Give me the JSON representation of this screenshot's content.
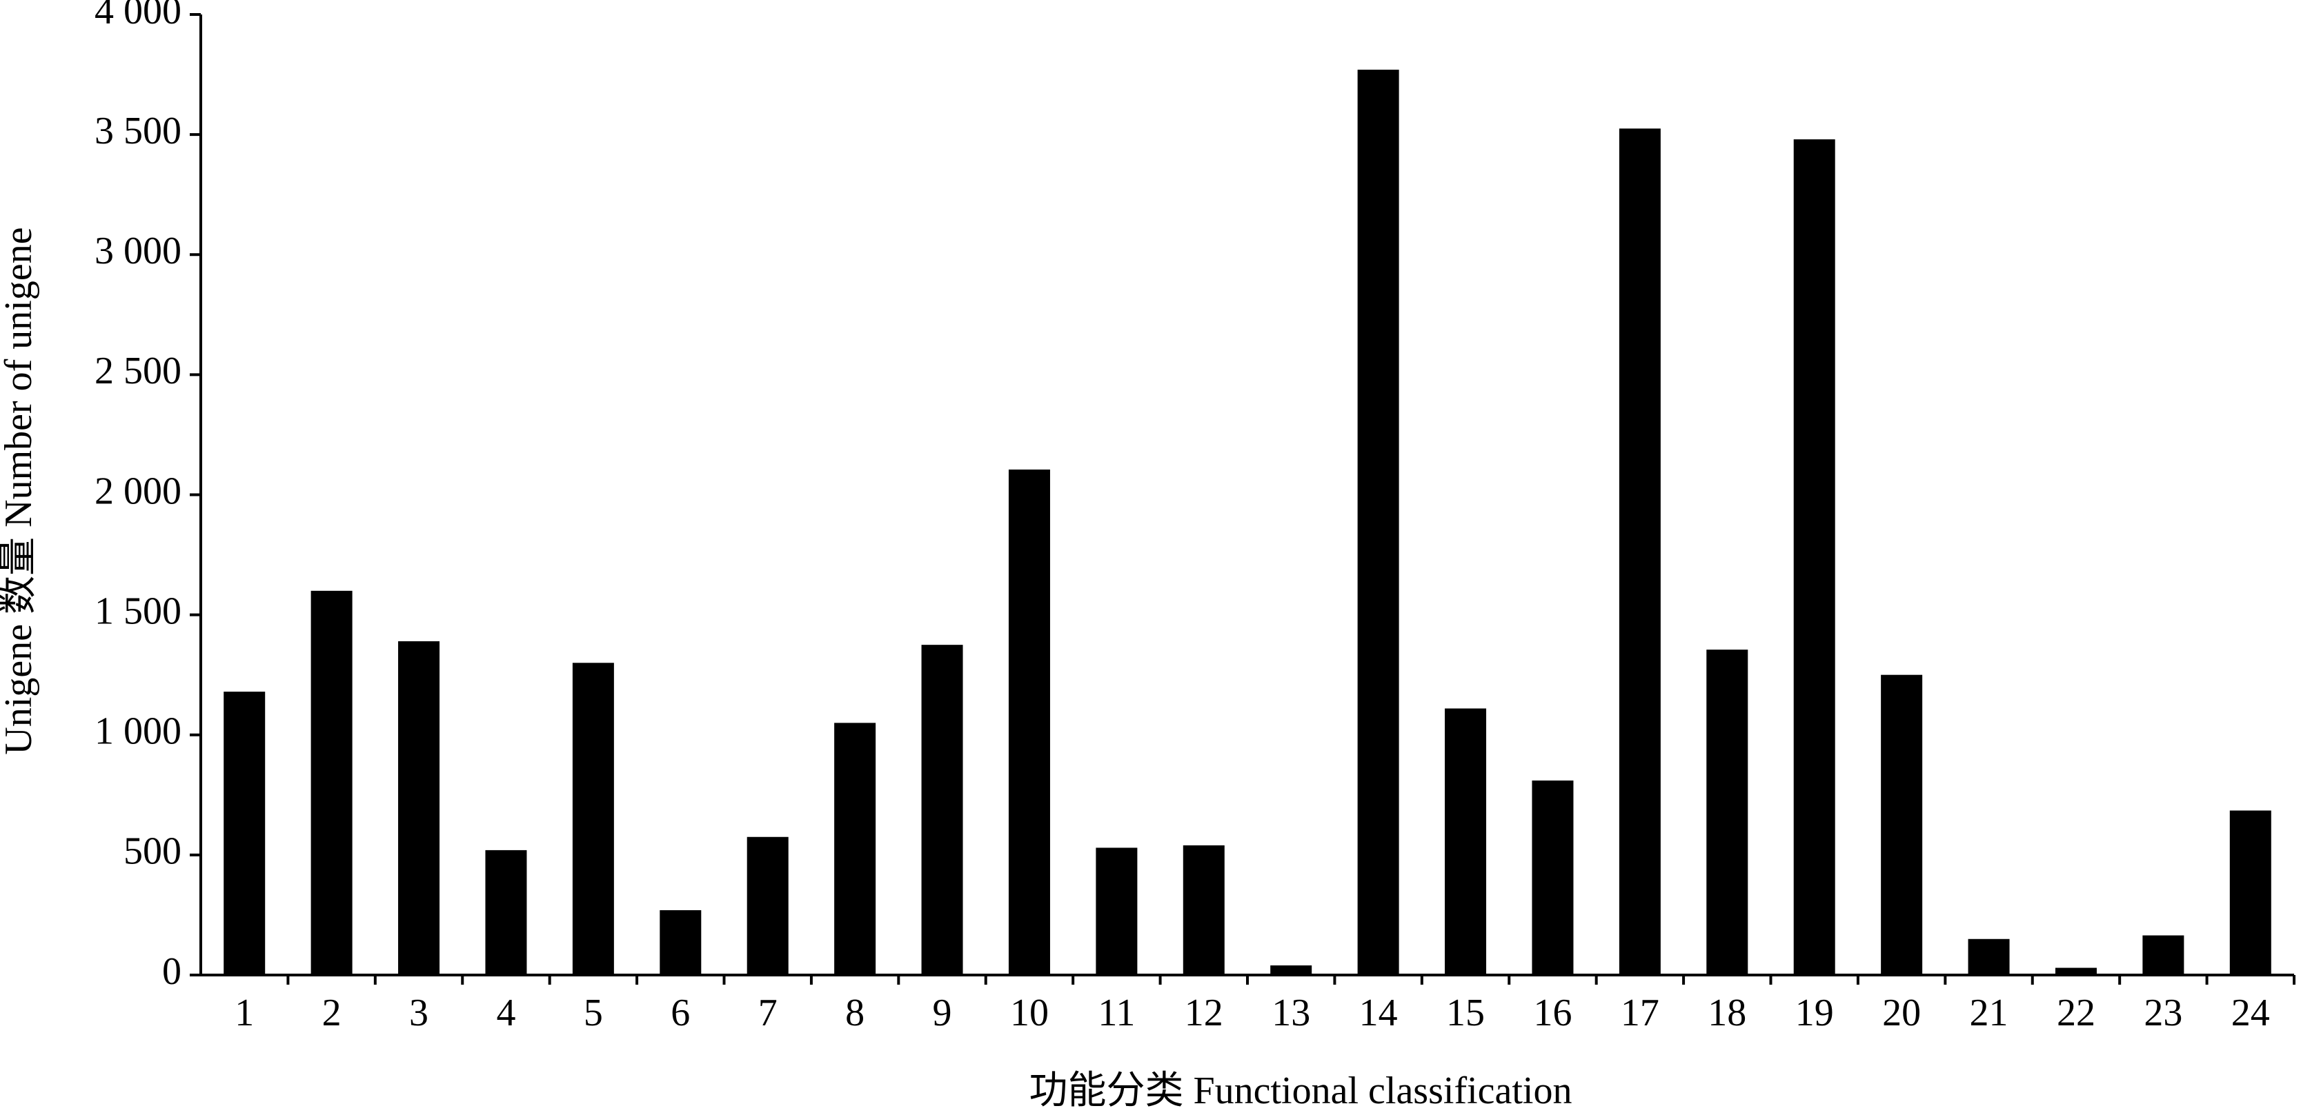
{
  "chart_data": {
    "type": "bar",
    "x_label": "功能分类 Functional classification",
    "y_label": "Unigene 数量 Number of unigene",
    "categories": [
      "1",
      "2",
      "3",
      "4",
      "5",
      "6",
      "7",
      "8",
      "9",
      "10",
      "11",
      "12",
      "13",
      "14",
      "15",
      "16",
      "17",
      "18",
      "19",
      "20",
      "21",
      "22",
      "23",
      "24"
    ],
    "values": [
      1180,
      1600,
      1390,
      520,
      1300,
      270,
      575,
      1050,
      1375,
      2105,
      530,
      540,
      40,
      3770,
      1110,
      810,
      3525,
      1355,
      3480,
      1250,
      150,
      30,
      165,
      685
    ],
    "color": "#000000",
    "ylim": [
      0,
      4000
    ],
    "yticks": [
      0,
      500,
      {
        "value": 1000,
        "label": "1 000"
      },
      {
        "value": 1500,
        "label": "1 500"
      },
      {
        "value": 2000,
        "label": "2 000"
      },
      {
        "value": 2500,
        "label": "2 500"
      },
      {
        "value": 3000,
        "label": "3 000"
      },
      {
        "value": 3500,
        "label": "3 500"
      },
      {
        "value": 4000,
        "label": "4 000"
      }
    ],
    "grid": false
  }
}
